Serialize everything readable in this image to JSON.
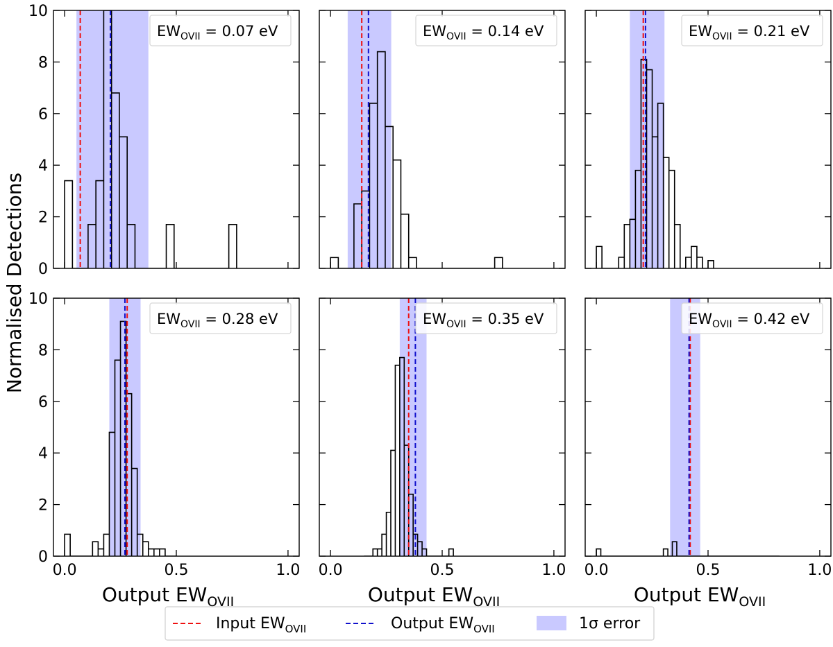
{
  "figure": {
    "ylabel": "Normalised Detections",
    "xlabel_main": "Output EW",
    "xlabel_sub": "OVII"
  },
  "legend": {
    "input_label": "Input EW",
    "input_sub": "OVII",
    "output_label": "Output EW",
    "output_sub": "OVII",
    "error_label": "1σ error",
    "placement": "bottom-center"
  },
  "colors": {
    "input_line": "#ee1111",
    "output_line": "#1111cc",
    "error_band": "#c9c9ff",
    "histogram": "#000000",
    "annotation_border": "#d6d6d6"
  },
  "axes": {
    "xlim": [
      -0.05,
      1.05
    ],
    "ylim": [
      0,
      10
    ],
    "xticks": [
      "0.0",
      "0.5",
      "1.0"
    ],
    "yticks": [
      "0",
      "2",
      "4",
      "6",
      "8",
      "10"
    ]
  },
  "chart_data": [
    {
      "type": "histogram",
      "annotation": "= 0.07 eV",
      "input_ew": 0.07,
      "output_ew": 0.205,
      "error_band": [
        0.053,
        0.375
      ],
      "bin_start": 0.0,
      "bin_width": 0.035,
      "values": [
        3.4,
        0,
        0,
        1.7,
        3.4,
        10.0,
        6.8,
        5.1,
        1.7,
        0,
        0,
        0,
        0,
        1.7,
        0,
        0,
        0,
        0,
        0,
        0,
        0,
        1.7
      ]
    },
    {
      "type": "histogram",
      "annotation": "= 0.14 eV",
      "input_ew": 0.14,
      "output_ew": 0.17,
      "error_band": [
        0.077,
        0.272
      ],
      "bin_start": 0.0,
      "bin_width": 0.035,
      "values": [
        0.42,
        0,
        0,
        2.5,
        3.0,
        6.4,
        8.4,
        5.5,
        4.2,
        2.1,
        0.42,
        0,
        0,
        0,
        0,
        0,
        0,
        0,
        0,
        0,
        0,
        0.42
      ]
    },
    {
      "type": "histogram",
      "annotation": "= 0.21 eV",
      "input_ew": 0.21,
      "output_ew": 0.22,
      "error_band": [
        0.15,
        0.305
      ],
      "bin_start": 0.0,
      "bin_width": 0.025,
      "values": [
        0.85,
        0,
        0,
        0,
        0.43,
        1.7,
        1.9,
        3.8,
        8.1,
        7.7,
        5.1,
        6.4,
        4.3,
        3.8,
        1.7,
        0,
        0.43,
        0.85,
        0.43,
        0,
        0.3
      ]
    },
    {
      "type": "histogram",
      "annotation": "= 0.28 eV",
      "input_ew": 0.28,
      "output_ew": 0.27,
      "error_band": [
        0.2,
        0.34
      ],
      "bin_start": 0.0,
      "bin_width": 0.025,
      "values": [
        0.85,
        0,
        0,
        0,
        0,
        0.56,
        0.28,
        0.85,
        4.8,
        7.6,
        9.1,
        6.3,
        3.4,
        0.85,
        0.56,
        0.28,
        0.28,
        0.28,
        0,
        0
      ]
    },
    {
      "type": "histogram",
      "annotation": "= 0.35 eV",
      "input_ew": 0.35,
      "output_ew": 0.38,
      "error_band": [
        0.31,
        0.43
      ],
      "bin_start": 0.15,
      "bin_width": 0.02,
      "values": [
        0,
        0,
        0.28,
        0.28,
        0.85,
        1.7,
        4.1,
        7.4,
        7.7,
        4.3,
        2.4,
        0.85,
        0.56,
        0.28,
        0,
        0,
        0,
        0,
        0,
        0.28
      ]
    },
    {
      "type": "histogram",
      "annotation": "= 0.42 eV",
      "input_ew": 0.42,
      "output_ew": 0.415,
      "error_band": [
        0.33,
        0.465
      ],
      "bin_start": 0.0,
      "bin_width": 0.02,
      "values": [
        0.28,
        0,
        0,
        0,
        0,
        0,
        0,
        0,
        0,
        0,
        0,
        0,
        0,
        0,
        0,
        0.28,
        0,
        0.56,
        0,
        0,
        0,
        0,
        0,
        0,
        0,
        0,
        0,
        0,
        0,
        0,
        0,
        0,
        0,
        0,
        0,
        0,
        0,
        0,
        0,
        0,
        0
      ]
    }
  ]
}
